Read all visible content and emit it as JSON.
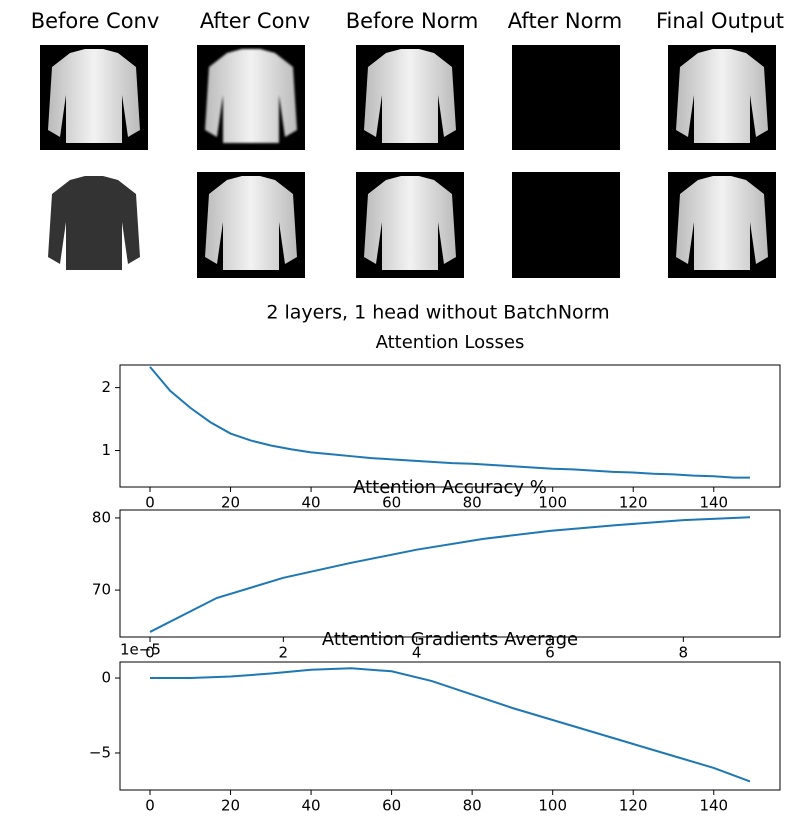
{
  "image_grid": {
    "column_titles": [
      "Before Conv",
      "After Conv",
      "Before Norm",
      "After Norm",
      "Final Output"
    ]
  },
  "suptitle": "2 layers, 1 head without BatchNorm",
  "chart_data": [
    {
      "type": "line",
      "title": "Attention Losses",
      "x": [
        0,
        5,
        10,
        15,
        20,
        25,
        30,
        35,
        40,
        45,
        50,
        55,
        60,
        65,
        70,
        75,
        80,
        85,
        90,
        95,
        100,
        105,
        110,
        115,
        120,
        125,
        130,
        135,
        140,
        145,
        149
      ],
      "values": [
        2.33,
        1.95,
        1.68,
        1.45,
        1.27,
        1.16,
        1.08,
        1.02,
        0.97,
        0.94,
        0.91,
        0.88,
        0.86,
        0.84,
        0.82,
        0.8,
        0.79,
        0.77,
        0.75,
        0.73,
        0.71,
        0.7,
        0.68,
        0.66,
        0.65,
        0.63,
        0.62,
        0.6,
        0.59,
        0.57,
        0.57
      ],
      "color": "#1f77b4",
      "xlim": [
        -7.45,
        156.45
      ],
      "ylim": [
        0.42,
        2.36
      ],
      "xticks": [
        0,
        20,
        40,
        60,
        80,
        100,
        120,
        140
      ],
      "yticks": [
        1,
        2
      ]
    },
    {
      "type": "line",
      "title": "Attention Accuracy %",
      "x": [
        0,
        1,
        2,
        3,
        4,
        5,
        6,
        7,
        8,
        9
      ],
      "values": [
        64.2,
        68.9,
        71.7,
        73.75,
        75.6,
        77.1,
        78.2,
        79.0,
        79.7,
        80.1
      ],
      "color": "#1f77b4",
      "xlim": [
        -0.45,
        9.45
      ],
      "ylim": [
        63.5,
        81.1
      ],
      "xticks": [
        0,
        2,
        4,
        6,
        8
      ],
      "yticks": [
        70,
        80
      ]
    },
    {
      "type": "line",
      "title": "Attention Gradients Average",
      "offset_label": "1e−5",
      "x": [
        0,
        10,
        20,
        30,
        40,
        50,
        60,
        70,
        80,
        90,
        100,
        110,
        120,
        130,
        140,
        149
      ],
      "values": [
        0,
        0,
        0.1,
        0.3,
        0.55,
        0.65,
        0.45,
        -0.2,
        -1.1,
        -2.0,
        -2.8,
        -3.6,
        -4.4,
        -5.2,
        -6.0,
        -6.9
      ],
      "color": "#1f77b4",
      "xlim": [
        -7.45,
        156.45
      ],
      "ylim": [
        -7.47,
        1.07
      ],
      "xticks": [
        0,
        20,
        40,
        60,
        80,
        100,
        120,
        140
      ],
      "yticks": [
        0,
        {
          "value": -5,
          "label": "−5"
        }
      ]
    }
  ]
}
